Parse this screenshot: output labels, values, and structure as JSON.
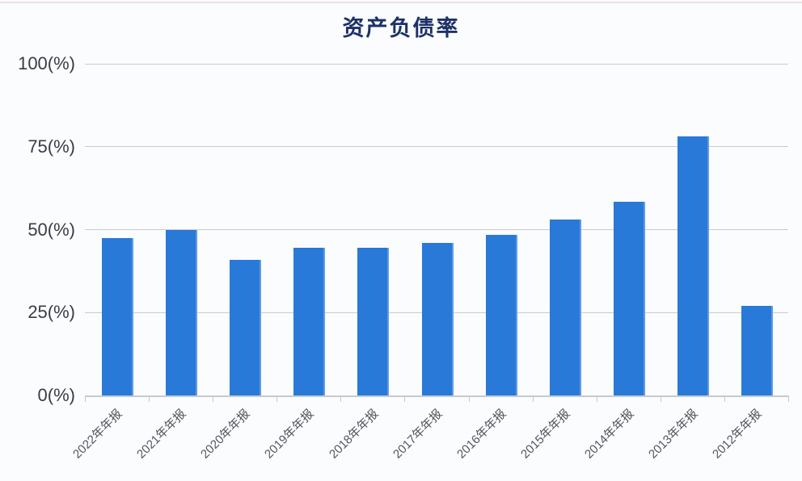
{
  "page": {
    "background_color": "#fafcfe",
    "top_accent_color": "#f3d4d4"
  },
  "chart_data": {
    "type": "bar",
    "title": "资产负债率",
    "title_color": "#1e3166",
    "bar_color": "#2979d8",
    "grid": true,
    "legend": "none",
    "x_label_rotation": 45,
    "unit": "%",
    "ylim": [
      0,
      100
    ],
    "yticks": [
      {
        "value": 0,
        "label": "0(%)"
      },
      {
        "value": 25,
        "label": "25(%)"
      },
      {
        "value": 50,
        "label": "50(%)"
      },
      {
        "value": 75,
        "label": "75(%)"
      },
      {
        "value": 100,
        "label": "100(%)"
      }
    ],
    "categories": [
      "2022年年报",
      "2021年年报",
      "2020年年报",
      "2019年年报",
      "2018年年报",
      "2017年年报",
      "2016年年报",
      "2015年年报",
      "2014年年报",
      "2013年年报",
      "2012年年报"
    ],
    "values": [
      47.5,
      50,
      41,
      44.5,
      44.5,
      46,
      48.5,
      53,
      58.5,
      78,
      27
    ]
  }
}
